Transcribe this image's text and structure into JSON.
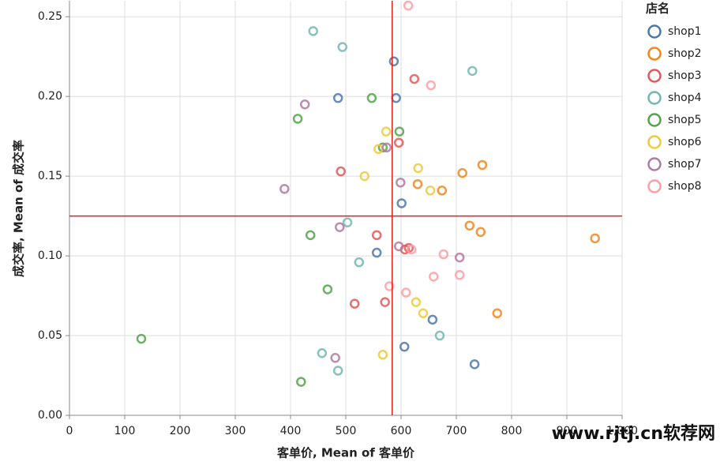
{
  "chart_data": {
    "type": "scatter",
    "x_label": "客单价, Mean of 客单价",
    "y_label": "成交率, Mean of 成交率",
    "legend_title": "店名",
    "legend_position": "right",
    "grid": true,
    "xlim": [
      0,
      1000
    ],
    "xticks": [
      0,
      100,
      200,
      300,
      400,
      500,
      600,
      700,
      800,
      900,
      {
        "value": 1000,
        "label": "1,000"
      }
    ],
    "ylim": [
      0,
      0.26
    ],
    "yticks": [
      {
        "value": 0,
        "label": "0.00"
      },
      {
        "value": 0.05,
        "label": "0.05"
      },
      {
        "value": 0.1,
        "label": "0.10"
      },
      {
        "value": 0.15,
        "label": "0.15"
      },
      {
        "value": 0.2,
        "label": "0.20"
      },
      {
        "value": 0.25,
        "label": "0.25"
      }
    ],
    "rule_x": 584,
    "rule_y": 0.125,
    "rule_color": "#e41a1c",
    "watermark": "www.rjtj.cn软荐网",
    "series": [
      {
        "name": "shop1",
        "color": "#4c78a8",
        "x": [
          587,
          486,
          591,
          601,
          556,
          657,
          606,
          733
        ],
        "values": [
          0.222,
          0.199,
          0.199,
          0.133,
          0.102,
          0.06,
          0.043,
          0.032
        ]
      },
      {
        "name": "shop2",
        "color": "#f58518",
        "x": [
          747,
          711,
          630,
          674,
          724,
          744,
          951,
          774
        ],
        "values": [
          0.157,
          0.152,
          0.145,
          0.141,
          0.119,
          0.115,
          0.111,
          0.064
        ]
      },
      {
        "name": "shop3",
        "color": "#e45756",
        "x": [
          624,
          596,
          491,
          556,
          614,
          607,
          571,
          516
        ],
        "values": [
          0.211,
          0.171,
          0.153,
          0.113,
          0.105,
          0.104,
          0.071,
          0.07
        ]
      },
      {
        "name": "shop4",
        "color": "#72b7b2",
        "x": [
          441,
          494,
          729,
          503,
          524,
          670,
          457,
          486
        ],
        "values": [
          0.241,
          0.231,
          0.216,
          0.121,
          0.096,
          0.05,
          0.039,
          0.028
        ]
      },
      {
        "name": "shop5",
        "color": "#54a24b",
        "x": [
          547,
          413,
          597,
          567,
          436,
          467,
          130,
          419
        ],
        "values": [
          0.199,
          0.186,
          0.178,
          0.168,
          0.113,
          0.079,
          0.048,
          0.021
        ]
      },
      {
        "name": "shop6",
        "color": "#eeca3b",
        "x": [
          573,
          559,
          631,
          534,
          653,
          627,
          640,
          567
        ],
        "values": [
          0.178,
          0.167,
          0.155,
          0.15,
          0.141,
          0.071,
          0.064,
          0.038
        ]
      },
      {
        "name": "shop7",
        "color": "#b279a2",
        "x": [
          426,
          574,
          599,
          389,
          489,
          596,
          706,
          481
        ],
        "values": [
          0.195,
          0.168,
          0.146,
          0.142,
          0.118,
          0.106,
          0.099,
          0.036
        ]
      },
      {
        "name": "shop8",
        "color": "#ff9da6",
        "x": [
          613,
          654,
          619,
          677,
          659,
          706,
          579,
          609
        ],
        "values": [
          0.257,
          0.207,
          0.104,
          0.101,
          0.087,
          0.088,
          0.081,
          0.077
        ]
      }
    ]
  }
}
